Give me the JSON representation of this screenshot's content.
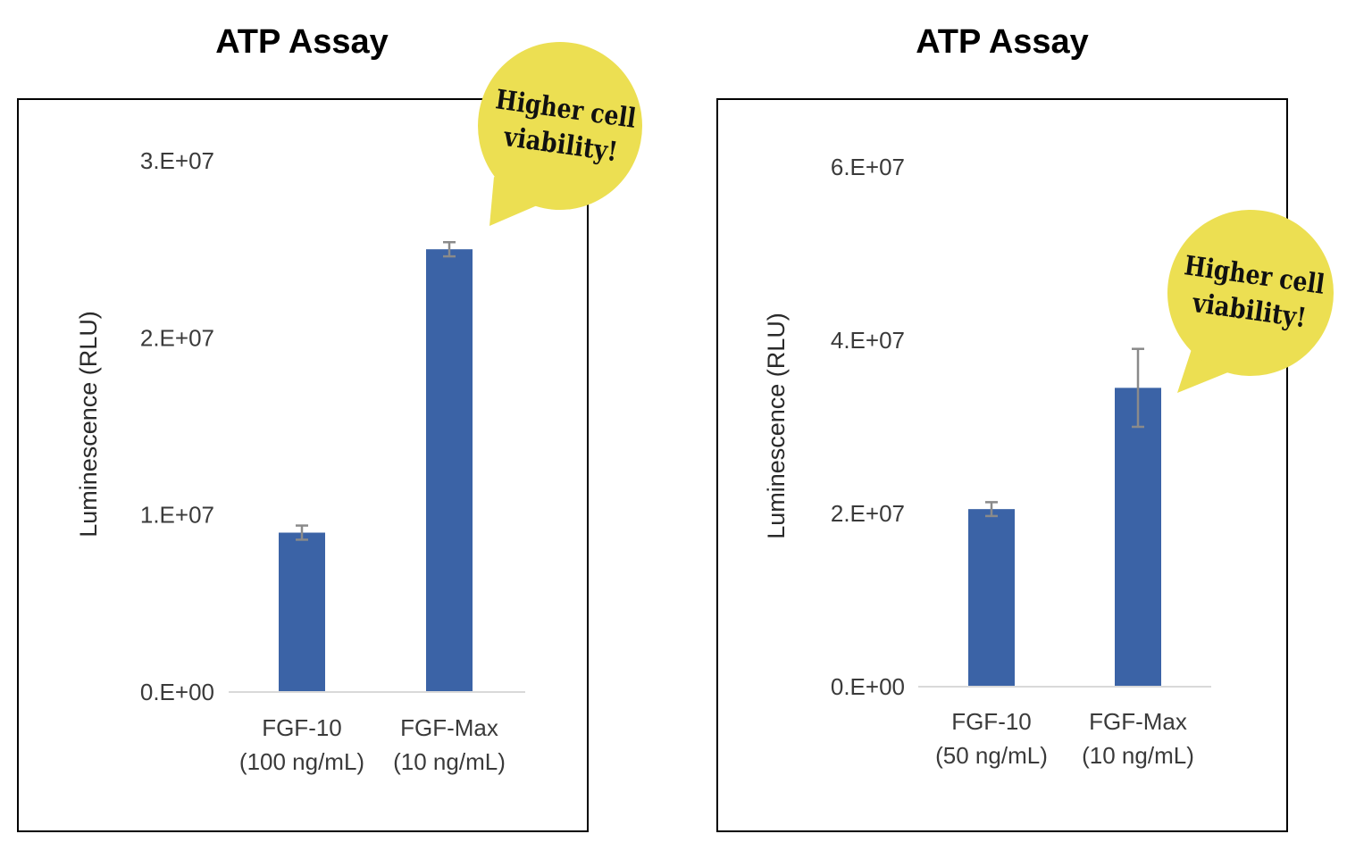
{
  "chart_data": [
    {
      "type": "bar",
      "title": "ATP Assay",
      "ylabel": "Luminescence (RLU)",
      "categories": [
        [
          "FGF-10",
          "(100 ng/mL)"
        ],
        [
          "FGF-Max",
          "(10 ng/mL)"
        ]
      ],
      "values": [
        9000000,
        25000000
      ],
      "error": [
        400000,
        400000
      ],
      "ylim": [
        0,
        30000000
      ],
      "yticks": [
        "0.E+00",
        "1.E+07",
        "2.E+07",
        "3.E+07"
      ],
      "bar_color": "#3b63a6",
      "error_color": "#8a8a8a",
      "callout": {
        "lines": [
          "Higher cell",
          "viability!"
        ],
        "color": "#ecdf52"
      }
    },
    {
      "type": "bar",
      "title": "ATP Assay",
      "ylabel": "Luminescence (RLU)",
      "categories": [
        [
          "FGF-10",
          "(50 ng/mL)"
        ],
        [
          "FGF-Max",
          "(10 ng/mL)"
        ]
      ],
      "values": [
        20500000,
        34500000
      ],
      "error": [
        800000,
        4500000
      ],
      "ylim": [
        0,
        60000000
      ],
      "yticks": [
        "0.E+00",
        "2.E+07",
        "4.E+07",
        "6.E+07"
      ],
      "bar_color": "#3b63a6",
      "error_color": "#8a8a8a",
      "callout": {
        "lines": [
          "Higher cell",
          "viability!"
        ],
        "color": "#ecdf52"
      }
    }
  ]
}
